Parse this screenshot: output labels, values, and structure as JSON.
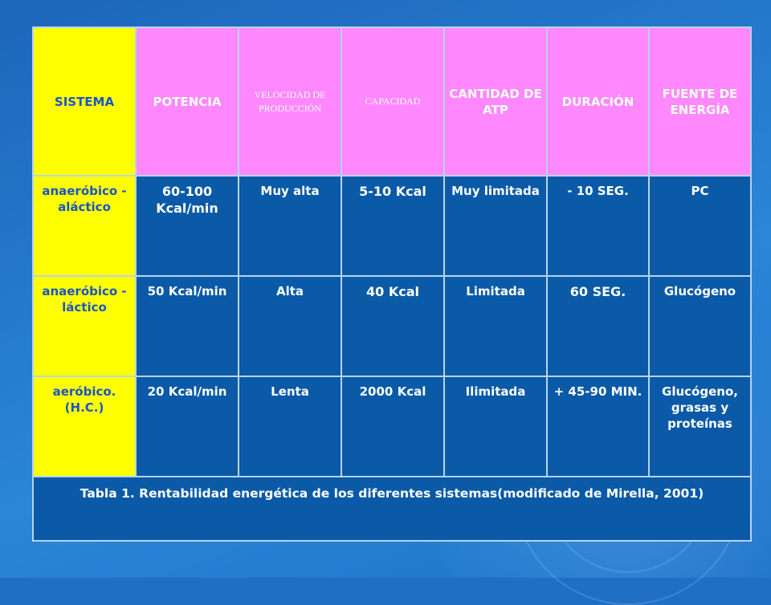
{
  "table": {
    "headers": [
      {
        "label": "SISTEMA"
      },
      {
        "label": "POTENCIA"
      },
      {
        "label": "VELOCIDAD DE PRODUCCIÓN"
      },
      {
        "label": "CAPACIDAD"
      },
      {
        "label": "CANTIDAD DE ATP"
      },
      {
        "label": "DURACIÓN"
      },
      {
        "label": "FUENTE DE ENERGÍA"
      }
    ],
    "rows": [
      {
        "cells": [
          "anaeróbico -aláctico",
          "60-100 Kcal/min",
          "Muy alta",
          "5-10 Kcal",
          "Muy limitada",
          "- 10 SEG.",
          "PC"
        ]
      },
      {
        "cells": [
          "anaeróbico -láctico",
          "50 Kcal/min",
          "Alta",
          "40 Kcal",
          "Limitada",
          "60 SEG.",
          "Glucógeno"
        ]
      },
      {
        "cells": [
          "aeróbico. (H.C.)",
          "20 Kcal/min",
          "Lenta",
          "2000 Kcal",
          "Ilimitada",
          "+ 45-90 MIN.",
          "Glucógeno, grasas y proteínas"
        ]
      }
    ],
    "caption": "Tabla 1. Rentabilidad energética de los diferentes sistemas(modificado de Mirella, 2001)"
  },
  "colors": {
    "background": "#1f6fc4",
    "first_column": "#ffff00",
    "header_row": "#ff88ff",
    "body_cells": "#0a5aa8"
  }
}
